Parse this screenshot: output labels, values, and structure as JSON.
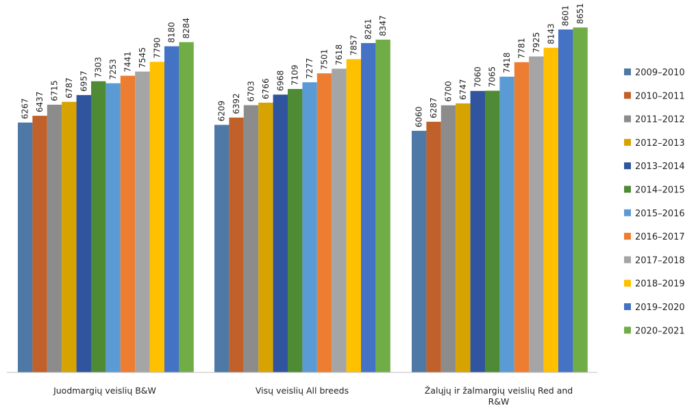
{
  "chart_data": {
    "type": "bar",
    "title": "",
    "xlabel": "",
    "ylabel": "",
    "ylim": [
      0,
      9200
    ],
    "grid": false,
    "legend_position": "right",
    "categories": [
      [
        "Juodmargių veislių B&W"
      ],
      [
        "Visų veislių All breeds"
      ],
      [
        "Žalųjų ir žalmargių veislių Red and",
        "R&W"
      ]
    ],
    "series": [
      {
        "name": "2009–2010",
        "color": "#4e79a7",
        "values": [
          6267,
          6209,
          6060
        ]
      },
      {
        "name": "2010–2011",
        "color": "#c0602a",
        "values": [
          6437,
          6392,
          6287
        ]
      },
      {
        "name": "2011–2012",
        "color": "#8c8c8c",
        "values": [
          6715,
          6703,
          6700
        ]
      },
      {
        "name": "2012–2013",
        "color": "#d6a300",
        "values": [
          6787,
          6766,
          6747
        ]
      },
      {
        "name": "2013–2014",
        "color": "#30559e",
        "values": [
          6957,
          6968,
          7060
        ]
      },
      {
        "name": "2014–2015",
        "color": "#4f8a34",
        "values": [
          7303,
          7109,
          7065
        ]
      },
      {
        "name": "2015–2016",
        "color": "#5b9bd5",
        "values": [
          7253,
          7277,
          7418
        ]
      },
      {
        "name": "2016–2017",
        "color": "#ed7d31",
        "values": [
          7441,
          7501,
          7781
        ]
      },
      {
        "name": "2017–2018",
        "color": "#a5a5a5",
        "values": [
          7545,
          7618,
          7925
        ]
      },
      {
        "name": "2018–2019",
        "color": "#ffc000",
        "values": [
          7790,
          7857,
          8143
        ]
      },
      {
        "name": "2019–2020",
        "color": "#4472c4",
        "values": [
          8180,
          8261,
          8601
        ]
      },
      {
        "name": "2020–2021",
        "color": "#70ad47",
        "values": [
          8284,
          8347,
          8651
        ]
      }
    ]
  }
}
